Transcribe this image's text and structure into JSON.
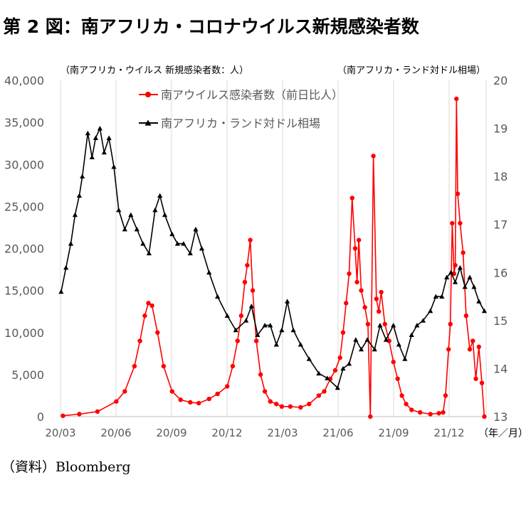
{
  "title": "第 2 図：南アフリカ・コロナウイルス新規感染者数",
  "source": "（資料）Bloomberg",
  "chart_data": {
    "type": "line",
    "title": "第 2 図：南アフリカ・コロナウイルス新規感染者数",
    "xlabel": "（年／月）",
    "ylabel": "（南アフリカ・ウイルス 新規感染者数：人）",
    "y2label": "（南アフリカ・ランド対ドル相場）",
    "x_ticks": [
      "20/03",
      "20/06",
      "20/09",
      "20/12",
      "21/03",
      "21/06",
      "21/09",
      "21/12"
    ],
    "x_range": [
      "2020-03",
      "2022-02"
    ],
    "ylim": [
      0,
      40000
    ],
    "y_ticks": [
      "0",
      "5,000",
      "10,000",
      "15,000",
      "20,000",
      "25,000",
      "30,000",
      "35,000",
      "40,000"
    ],
    "y2lim": [
      13,
      20
    ],
    "y2_ticks": [
      "13",
      "14",
      "15",
      "16",
      "17",
      "18",
      "19",
      "20"
    ],
    "grid": "vertical",
    "legend_position": "top-center",
    "series": [
      {
        "name": "南アウイルス感染者数（前日比人）",
        "axis": "left",
        "color": "#ff0000",
        "marker": "circle",
        "x": [
          "2020-03-05",
          "2020-04-01",
          "2020-05-01",
          "2020-06-01",
          "2020-06-15",
          "2020-07-01",
          "2020-07-10",
          "2020-07-18",
          "2020-07-24",
          "2020-07-30",
          "2020-08-08",
          "2020-08-18",
          "2020-09-01",
          "2020-09-15",
          "2020-10-01",
          "2020-10-15",
          "2020-11-01",
          "2020-11-15",
          "2020-12-01",
          "2020-12-10",
          "2020-12-18",
          "2020-12-24",
          "2020-12-30",
          "2021-01-03",
          "2021-01-08",
          "2021-01-12",
          "2021-01-18",
          "2021-01-25",
          "2021-02-01",
          "2021-02-10",
          "2021-02-20",
          "2021-03-01",
          "2021-03-15",
          "2021-04-01",
          "2021-04-15",
          "2021-05-01",
          "2021-05-10",
          "2021-05-20",
          "2021-05-28",
          "2021-06-05",
          "2021-06-10",
          "2021-06-15",
          "2021-06-20",
          "2021-06-25",
          "2021-06-30",
          "2021-07-03",
          "2021-07-06",
          "2021-07-10",
          "2021-07-16",
          "2021-07-21",
          "2021-07-25",
          "2021-07-30",
          "2021-08-04",
          "2021-08-08",
          "2021-08-12",
          "2021-08-18",
          "2021-08-25",
          "2021-09-01",
          "2021-09-08",
          "2021-09-15",
          "2021-09-22",
          "2021-10-01",
          "2021-10-15",
          "2021-11-01",
          "2021-11-15",
          "2021-11-22",
          "2021-11-26",
          "2021-12-01",
          "2021-12-04",
          "2021-12-07",
          "2021-12-10",
          "2021-12-12",
          "2021-12-14",
          "2021-12-16",
          "2021-12-20",
          "2021-12-25",
          "2021-12-30",
          "2022-01-05",
          "2022-01-10",
          "2022-01-15",
          "2022-01-20",
          "2022-01-25",
          "2022-01-29"
        ],
        "values": [
          100,
          300,
          600,
          1800,
          3000,
          6000,
          9000,
          12000,
          13500,
          13200,
          10000,
          6000,
          3000,
          2000,
          1700,
          1600,
          2100,
          2700,
          3600,
          6000,
          9000,
          12000,
          16000,
          18000,
          21000,
          15000,
          9000,
          5000,
          3000,
          1800,
          1500,
          1200,
          1200,
          1100,
          1500,
          2500,
          3000,
          4500,
          5500,
          7000,
          10000,
          13500,
          17000,
          26000,
          20000,
          16000,
          21000,
          15000,
          13000,
          11000,
          0,
          31000,
          14000,
          12500,
          14800,
          11000,
          9000,
          6500,
          4500,
          2500,
          1500,
          800,
          500,
          300,
          400,
          500,
          2500,
          8000,
          11000,
          23000,
          17000,
          18000,
          37800,
          26500,
          23000,
          19500,
          12000,
          8000,
          9000,
          4500,
          8300,
          4000,
          0
        ]
      },
      {
        "name": "南アフリカ・ランド対ドル相場",
        "axis": "right",
        "color": "#000000",
        "marker": "triangle",
        "x": [
          "2020-03-02",
          "2020-03-10",
          "2020-03-18",
          "2020-03-25",
          "2020-04-01",
          "2020-04-06",
          "2020-04-15",
          "2020-04-22",
          "2020-04-28",
          "2020-05-05",
          "2020-05-12",
          "2020-05-20",
          "2020-05-28",
          "2020-06-05",
          "2020-06-15",
          "2020-06-25",
          "2020-07-05",
          "2020-07-15",
          "2020-07-25",
          "2020-08-04",
          "2020-08-12",
          "2020-08-20",
          "2020-09-01",
          "2020-09-10",
          "2020-09-20",
          "2020-10-01",
          "2020-10-10",
          "2020-10-20",
          "2020-11-01",
          "2020-11-15",
          "2020-12-01",
          "2020-12-15",
          "2021-01-01",
          "2021-01-10",
          "2021-01-20",
          "2021-02-01",
          "2021-02-10",
          "2021-02-20",
          "2021-03-01",
          "2021-03-10",
          "2021-03-20",
          "2021-04-01",
          "2021-04-15",
          "2021-05-01",
          "2021-05-15",
          "2021-06-01",
          "2021-06-10",
          "2021-06-20",
          "2021-07-01",
          "2021-07-10",
          "2021-07-20",
          "2021-08-01",
          "2021-08-10",
          "2021-08-20",
          "2021-09-01",
          "2021-09-10",
          "2021-09-20",
          "2021-10-01",
          "2021-10-10",
          "2021-10-20",
          "2021-11-01",
          "2021-11-10",
          "2021-11-20",
          "2021-11-28",
          "2021-12-05",
          "2021-12-12",
          "2021-12-20",
          "2021-12-28",
          "2022-01-05",
          "2022-01-12",
          "2022-01-20",
          "2022-01-29"
        ],
        "values": [
          15.6,
          16.1,
          16.6,
          17.2,
          17.6,
          18.0,
          18.9,
          18.4,
          18.8,
          19.0,
          18.5,
          18.8,
          18.2,
          17.3,
          16.9,
          17.2,
          16.9,
          16.6,
          16.4,
          17.3,
          17.6,
          17.2,
          16.8,
          16.6,
          16.6,
          16.4,
          16.9,
          16.5,
          16.0,
          15.5,
          15.1,
          14.8,
          15.0,
          15.3,
          14.7,
          14.9,
          14.9,
          14.5,
          14.8,
          15.4,
          14.8,
          14.5,
          14.2,
          13.9,
          13.8,
          13.6,
          14.0,
          14.1,
          14.6,
          14.4,
          14.6,
          14.4,
          14.9,
          14.6,
          14.9,
          14.5,
          14.2,
          14.7,
          14.9,
          15.0,
          15.2,
          15.5,
          15.5,
          15.9,
          16.0,
          15.8,
          16.1,
          15.7,
          15.9,
          15.7,
          15.4,
          15.2
        ]
      }
    ]
  }
}
